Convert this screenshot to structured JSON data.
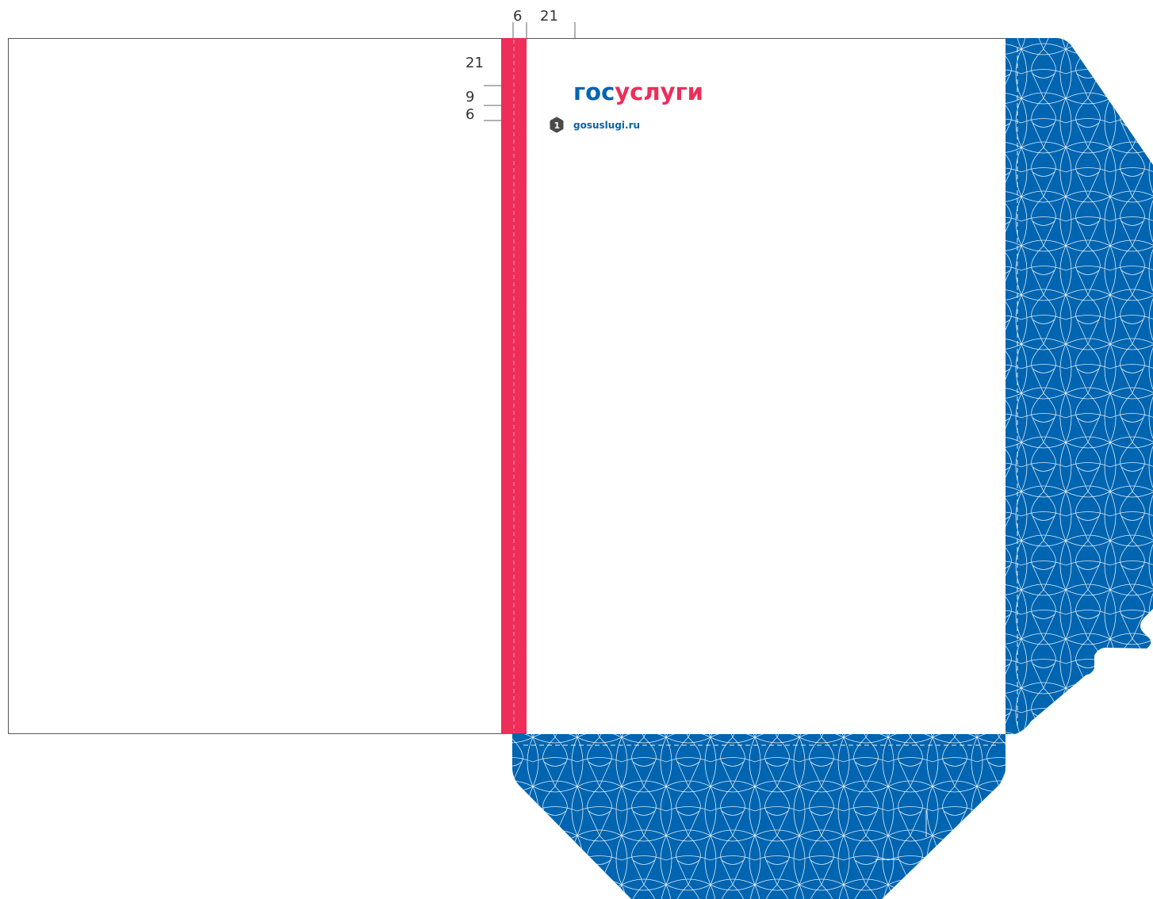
{
  "dimensions": {
    "spine_width": "6",
    "margin_top": "21",
    "margin_left": "21",
    "gap_small": "9",
    "gap_tiny": "6"
  },
  "logo": {
    "part1": "гос",
    "part2": "услуги"
  },
  "website": {
    "badge": "1",
    "url": "gosuslugi.ru"
  },
  "colors": {
    "brand_blue": "#0065b1",
    "brand_red": "#ee2d58",
    "pattern_line": "#ffffff",
    "outline": "#555555"
  }
}
